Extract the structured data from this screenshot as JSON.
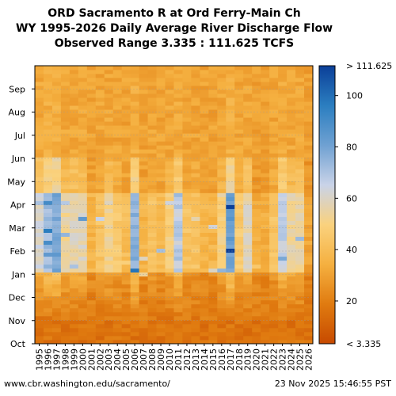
{
  "chart_data": {
    "type": "heatmap",
    "title": [
      "ORD Sacramento R at Ord Ferry-Main Ch",
      "WY 1995-2026 Daily Average River Discharge Flow",
      "Observed Range 3.335 : 111.625 TCFS"
    ],
    "x_categories": [
      "1995",
      "1996",
      "1997",
      "1998",
      "1999",
      "2000",
      "2001",
      "2002",
      "2003",
      "2004",
      "2005",
      "2006",
      "2007",
      "2008",
      "2009",
      "2010",
      "2011",
      "2012",
      "2013",
      "2014",
      "2015",
      "2016",
      "2017",
      "2018",
      "2019",
      "2020",
      "2021",
      "2022",
      "2023",
      "2024",
      "2025",
      "2026"
    ],
    "y_categories": [
      "Oct",
      "Nov",
      "Dec",
      "Jan",
      "Feb",
      "Mar",
      "Apr",
      "May",
      "Jun",
      "Jul",
      "Aug",
      "Sep"
    ],
    "value_range": [
      3.335,
      111.625
    ],
    "colorbar": {
      "ticks": [
        20,
        40,
        60,
        80,
        100
      ],
      "max_label": "> 111.625",
      "min_label": "< 3.335",
      "colors": [
        "#c74a00",
        "#e07b10",
        "#f5b040",
        "#fad27e",
        "#c9d3e8",
        "#6fa1d2",
        "#2b7ec0",
        "#0b3f98"
      ]
    },
    "yearly_flow_index": [
      0.6,
      0.8,
      0.9,
      0.5,
      0.55,
      0.55,
      0.2,
      0.3,
      0.45,
      0.35,
      0.25,
      0.85,
      0.2,
      0.3,
      0.25,
      0.4,
      0.7,
      0.3,
      0.3,
      0.2,
      0.2,
      0.4,
      0.95,
      0.35,
      0.55,
      0.15,
      0.15,
      0.3,
      0.7,
      0.5,
      0.5,
      0.1
    ]
  },
  "footer": {
    "url": "www.cbr.washington.edu/sacramento/",
    "timestamp": "23 Nov 2025 15:46:55 PST"
  }
}
